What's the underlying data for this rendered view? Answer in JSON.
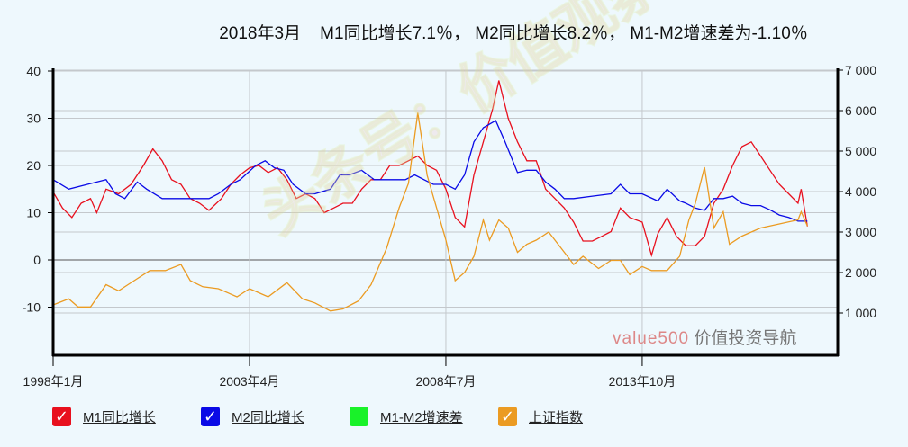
{
  "title": "2018年3月    M1同比增长7.1％， M2同比增长8.2％， M1-M2增速差为-1.10％",
  "watermark": {
    "brand": "value500",
    "text": "价值投资导航",
    "overlay": "头条号：价值观察"
  },
  "legend": [
    {
      "label": "M1同比增长",
      "color": "#e8101e",
      "checked": true
    },
    {
      "label": "M2同比增长",
      "color": "#0a0ae6",
      "checked": true
    },
    {
      "label": "M1-M2增速差",
      "color": "#19f229",
      "checked": false
    },
    {
      "label": "上证指数",
      "color": "#eb9b22",
      "checked": true
    }
  ],
  "chart_data": {
    "type": "line",
    "title": "2018年3月    M1同比增长7.1％， M2同比增长8.2％， M1-M2增速差为-1.10％",
    "x_range": [
      "1998-01",
      "2018-03"
    ],
    "x_ticks": [
      {
        "date": "1998-01",
        "label": "1998年1月"
      },
      {
        "date": "2003-04",
        "label": "2003年4月"
      },
      {
        "date": "2008-07",
        "label": "2008年7月"
      },
      {
        "date": "2013-10",
        "label": "2013年10月"
      }
    ],
    "y_left": {
      "range": [
        -20,
        40
      ],
      "ticks": [
        40,
        30,
        20,
        10,
        0,
        -10
      ]
    },
    "y_right": {
      "range": [
        0,
        7000
      ],
      "ticks": [
        7000,
        6000,
        5000,
        4000,
        3000,
        2000,
        1000
      ],
      "tick_labels": [
        "7 000",
        "6 000",
        "5 000",
        "4 000",
        "3 000",
        "2 000",
        "1 000"
      ]
    },
    "grid": true,
    "legend_position": "bottom",
    "series": [
      {
        "name": "M1同比增长",
        "axis": "left",
        "color": "#e8101e",
        "points": [
          [
            "1998-01",
            14.4
          ],
          [
            "1998-04",
            11
          ],
          [
            "1998-07",
            9
          ],
          [
            "1998-10",
            12
          ],
          [
            "1999-01",
            13
          ],
          [
            "1999-03",
            10
          ],
          [
            "1999-06",
            15
          ],
          [
            "1999-10",
            14
          ],
          [
            "2000-02",
            16
          ],
          [
            "2000-06",
            20
          ],
          [
            "2000-09",
            23.5
          ],
          [
            "2000-12",
            21
          ],
          [
            "2001-03",
            17
          ],
          [
            "2001-06",
            16
          ],
          [
            "2001-09",
            13
          ],
          [
            "2001-12",
            12
          ],
          [
            "2002-03",
            10.5
          ],
          [
            "2002-07",
            13
          ],
          [
            "2002-10",
            16
          ],
          [
            "2003-01",
            18
          ],
          [
            "2003-04",
            19.5
          ],
          [
            "2003-07",
            20
          ],
          [
            "2003-10",
            18.5
          ],
          [
            "2004-01",
            19.5
          ],
          [
            "2004-04",
            17
          ],
          [
            "2004-07",
            13
          ],
          [
            "2004-10",
            14
          ],
          [
            "2005-01",
            13
          ],
          [
            "2005-04",
            10
          ],
          [
            "2005-07",
            11
          ],
          [
            "2005-10",
            12
          ],
          [
            "2006-01",
            12
          ],
          [
            "2006-04",
            15
          ],
          [
            "2006-07",
            17
          ],
          [
            "2006-10",
            17
          ],
          [
            "2007-01",
            20
          ],
          [
            "2007-04",
            20
          ],
          [
            "2007-07",
            21
          ],
          [
            "2007-10",
            22
          ],
          [
            "2008-01",
            20
          ],
          [
            "2008-04",
            19
          ],
          [
            "2008-07",
            15
          ],
          [
            "2008-10",
            9
          ],
          [
            "2009-01",
            7
          ],
          [
            "2009-04",
            18
          ],
          [
            "2009-07",
            25
          ],
          [
            "2009-10",
            32
          ],
          [
            "2009-12",
            38
          ],
          [
            "2010-03",
            30
          ],
          [
            "2010-06",
            25
          ],
          [
            "2010-09",
            21
          ],
          [
            "2010-12",
            21
          ],
          [
            "2011-03",
            15
          ],
          [
            "2011-06",
            13
          ],
          [
            "2011-09",
            11
          ],
          [
            "2011-12",
            8
          ],
          [
            "2012-03",
            4
          ],
          [
            "2012-06",
            4
          ],
          [
            "2012-09",
            5
          ],
          [
            "2012-12",
            6
          ],
          [
            "2013-03",
            11
          ],
          [
            "2013-06",
            9
          ],
          [
            "2013-10",
            8
          ],
          [
            "2014-01",
            1
          ],
          [
            "2014-03",
            5.5
          ],
          [
            "2014-06",
            9
          ],
          [
            "2014-09",
            5
          ],
          [
            "2014-12",
            3
          ],
          [
            "2015-03",
            3
          ],
          [
            "2015-06",
            5
          ],
          [
            "2015-09",
            12
          ],
          [
            "2015-12",
            15
          ],
          [
            "2016-03",
            20
          ],
          [
            "2016-06",
            24
          ],
          [
            "2016-09",
            25
          ],
          [
            "2016-12",
            22
          ],
          [
            "2017-03",
            19
          ],
          [
            "2017-06",
            16
          ],
          [
            "2017-09",
            14
          ],
          [
            "2017-12",
            12
          ],
          [
            "2018-01",
            15
          ],
          [
            "2018-03",
            7.1
          ]
        ]
      },
      {
        "name": "M2同比增长",
        "axis": "left",
        "color": "#0a0ae6",
        "points": [
          [
            "1998-01",
            17
          ],
          [
            "1998-06",
            15
          ],
          [
            "1998-12",
            16
          ],
          [
            "1999-06",
            17
          ],
          [
            "1999-09",
            14
          ],
          [
            "1999-12",
            13
          ],
          [
            "2000-04",
            16.5
          ],
          [
            "2000-07",
            15
          ],
          [
            "2000-12",
            13
          ],
          [
            "2001-06",
            13
          ],
          [
            "2001-12",
            13
          ],
          [
            "2002-03",
            13
          ],
          [
            "2002-06",
            14
          ],
          [
            "2002-10",
            16
          ],
          [
            "2003-01",
            17
          ],
          [
            "2003-06",
            20
          ],
          [
            "2003-09",
            21
          ],
          [
            "2003-12",
            19.5
          ],
          [
            "2004-03",
            19
          ],
          [
            "2004-06",
            16
          ],
          [
            "2004-10",
            14
          ],
          [
            "2005-01",
            14
          ],
          [
            "2005-06",
            15
          ],
          [
            "2005-09",
            18
          ],
          [
            "2005-12",
            18
          ],
          [
            "2006-04",
            19
          ],
          [
            "2006-08",
            17
          ],
          [
            "2006-12",
            17
          ],
          [
            "2007-03",
            17
          ],
          [
            "2007-06",
            17
          ],
          [
            "2007-09",
            18
          ],
          [
            "2007-12",
            17
          ],
          [
            "2008-03",
            16
          ],
          [
            "2008-07",
            16
          ],
          [
            "2008-10",
            15
          ],
          [
            "2009-01",
            18
          ],
          [
            "2009-04",
            25
          ],
          [
            "2009-07",
            28
          ],
          [
            "2009-11",
            29.5
          ],
          [
            "2010-02",
            25
          ],
          [
            "2010-06",
            18.5
          ],
          [
            "2010-09",
            19
          ],
          [
            "2010-12",
            19
          ],
          [
            "2011-03",
            16.5
          ],
          [
            "2011-06",
            15
          ],
          [
            "2011-09",
            13
          ],
          [
            "2011-12",
            13
          ],
          [
            "2012-06",
            13.5
          ],
          [
            "2012-12",
            14
          ],
          [
            "2013-03",
            16
          ],
          [
            "2013-06",
            14
          ],
          [
            "2013-10",
            14
          ],
          [
            "2014-03",
            12.5
          ],
          [
            "2014-06",
            15
          ],
          [
            "2014-10",
            12.5
          ],
          [
            "2014-12",
            12
          ],
          [
            "2015-03",
            11
          ],
          [
            "2015-06",
            10.5
          ],
          [
            "2015-09",
            13
          ],
          [
            "2015-12",
            13
          ],
          [
            "2016-03",
            13.5
          ],
          [
            "2016-06",
            12
          ],
          [
            "2016-09",
            11.5
          ],
          [
            "2016-12",
            11.5
          ],
          [
            "2017-03",
            10.6
          ],
          [
            "2017-06",
            9.5
          ],
          [
            "2017-09",
            9
          ],
          [
            "2017-12",
            8.2
          ],
          [
            "2018-03",
            8.2
          ]
        ]
      },
      {
        "name": "M1-M2增速差",
        "axis": "left",
        "color": "#19f229",
        "visible": false,
        "points": []
      },
      {
        "name": "上证指数",
        "axis": "right",
        "color": "#eb9b22",
        "points": [
          [
            "1998-01",
            1200
          ],
          [
            "1998-06",
            1350
          ],
          [
            "1998-09",
            1150
          ],
          [
            "1999-01",
            1150
          ],
          [
            "1999-06",
            1700
          ],
          [
            "1999-10",
            1550
          ],
          [
            "2000-03",
            1800
          ],
          [
            "2000-08",
            2050
          ],
          [
            "2001-01",
            2050
          ],
          [
            "2001-06",
            2200
          ],
          [
            "2001-09",
            1800
          ],
          [
            "2002-01",
            1650
          ],
          [
            "2002-06",
            1600
          ],
          [
            "2002-12",
            1400
          ],
          [
            "2003-04",
            1600
          ],
          [
            "2003-10",
            1400
          ],
          [
            "2004-04",
            1750
          ],
          [
            "2004-09",
            1350
          ],
          [
            "2005-01",
            1250
          ],
          [
            "2005-06",
            1050
          ],
          [
            "2005-10",
            1100
          ],
          [
            "2006-03",
            1300
          ],
          [
            "2006-07",
            1700
          ],
          [
            "2006-12",
            2600
          ],
          [
            "2007-04",
            3600
          ],
          [
            "2007-07",
            4200
          ],
          [
            "2007-10",
            5950
          ],
          [
            "2008-01",
            4400
          ],
          [
            "2008-04",
            3600
          ],
          [
            "2008-07",
            2800
          ],
          [
            "2008-10",
            1800
          ],
          [
            "2009-01",
            2000
          ],
          [
            "2009-04",
            2400
          ],
          [
            "2009-07",
            3300
          ],
          [
            "2009-09",
            2800
          ],
          [
            "2009-12",
            3300
          ],
          [
            "2010-03",
            3100
          ],
          [
            "2010-06",
            2500
          ],
          [
            "2010-09",
            2700
          ],
          [
            "2010-12",
            2800
          ],
          [
            "2011-04",
            3000
          ],
          [
            "2011-08",
            2600
          ],
          [
            "2011-12",
            2200
          ],
          [
            "2012-03",
            2400
          ],
          [
            "2012-08",
            2100
          ],
          [
            "2012-12",
            2300
          ],
          [
            "2013-03",
            2300
          ],
          [
            "2013-06",
            1950
          ],
          [
            "2013-10",
            2150
          ],
          [
            "2014-01",
            2050
          ],
          [
            "2014-06",
            2050
          ],
          [
            "2014-10",
            2400
          ],
          [
            "2015-01",
            3300
          ],
          [
            "2015-03",
            3700
          ],
          [
            "2015-06",
            4600
          ],
          [
            "2015-09",
            3100
          ],
          [
            "2015-12",
            3500
          ],
          [
            "2016-02",
            2700
          ],
          [
            "2016-06",
            2900
          ],
          [
            "2016-12",
            3100
          ],
          [
            "2017-06",
            3200
          ],
          [
            "2017-12",
            3300
          ],
          [
            "2018-01",
            3500
          ],
          [
            "2018-03",
            3150
          ]
        ]
      }
    ]
  }
}
